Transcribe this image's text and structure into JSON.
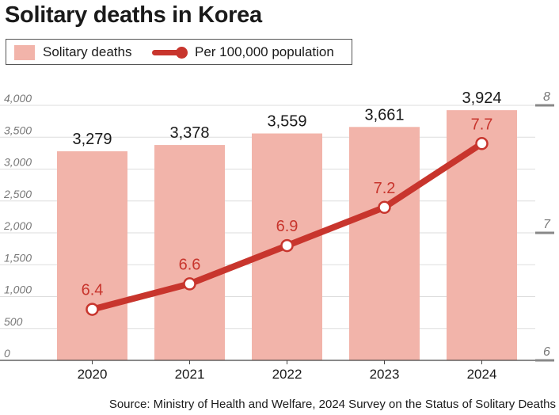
{
  "chart_data": {
    "type": "bar",
    "title": "Solitary deaths in Korea",
    "categories": [
      "2020",
      "2021",
      "2022",
      "2023",
      "2024"
    ],
    "series": [
      {
        "name": "Solitary deaths",
        "type": "bar",
        "axis": "left",
        "values": [
          3279,
          3378,
          3559,
          3661,
          3924
        ],
        "labels": [
          "3,279",
          "3,378",
          "3,559",
          "3,661",
          "3,924"
        ],
        "color": "#f2b4aa"
      },
      {
        "name": "Per 100,000 population",
        "type": "line",
        "axis": "right",
        "values": [
          6.4,
          6.6,
          6.9,
          7.2,
          7.7
        ],
        "labels": [
          "6.4",
          "6.6",
          "6.9",
          "7.2",
          "7.7"
        ],
        "color": "#c8352d"
      }
    ],
    "y_left": {
      "ylim": [
        0,
        4000
      ],
      "ticks": [
        0,
        500,
        1000,
        1500,
        2000,
        2500,
        3000,
        3500,
        4000
      ],
      "tick_labels": [
        "0",
        "500",
        "1,000",
        "1,500",
        "2,000",
        "2,500",
        "3,000",
        "3,500",
        "4,000"
      ]
    },
    "y_right": {
      "ylim": [
        6,
        8
      ],
      "ticks": [
        6,
        7,
        8
      ],
      "tick_labels": [
        "6",
        "7",
        "8"
      ]
    },
    "grid": true,
    "legend_position": "top-left",
    "source": "Source: Ministry of Health and Welfare, 2024 Survey on the Status of Solitary Deaths"
  }
}
